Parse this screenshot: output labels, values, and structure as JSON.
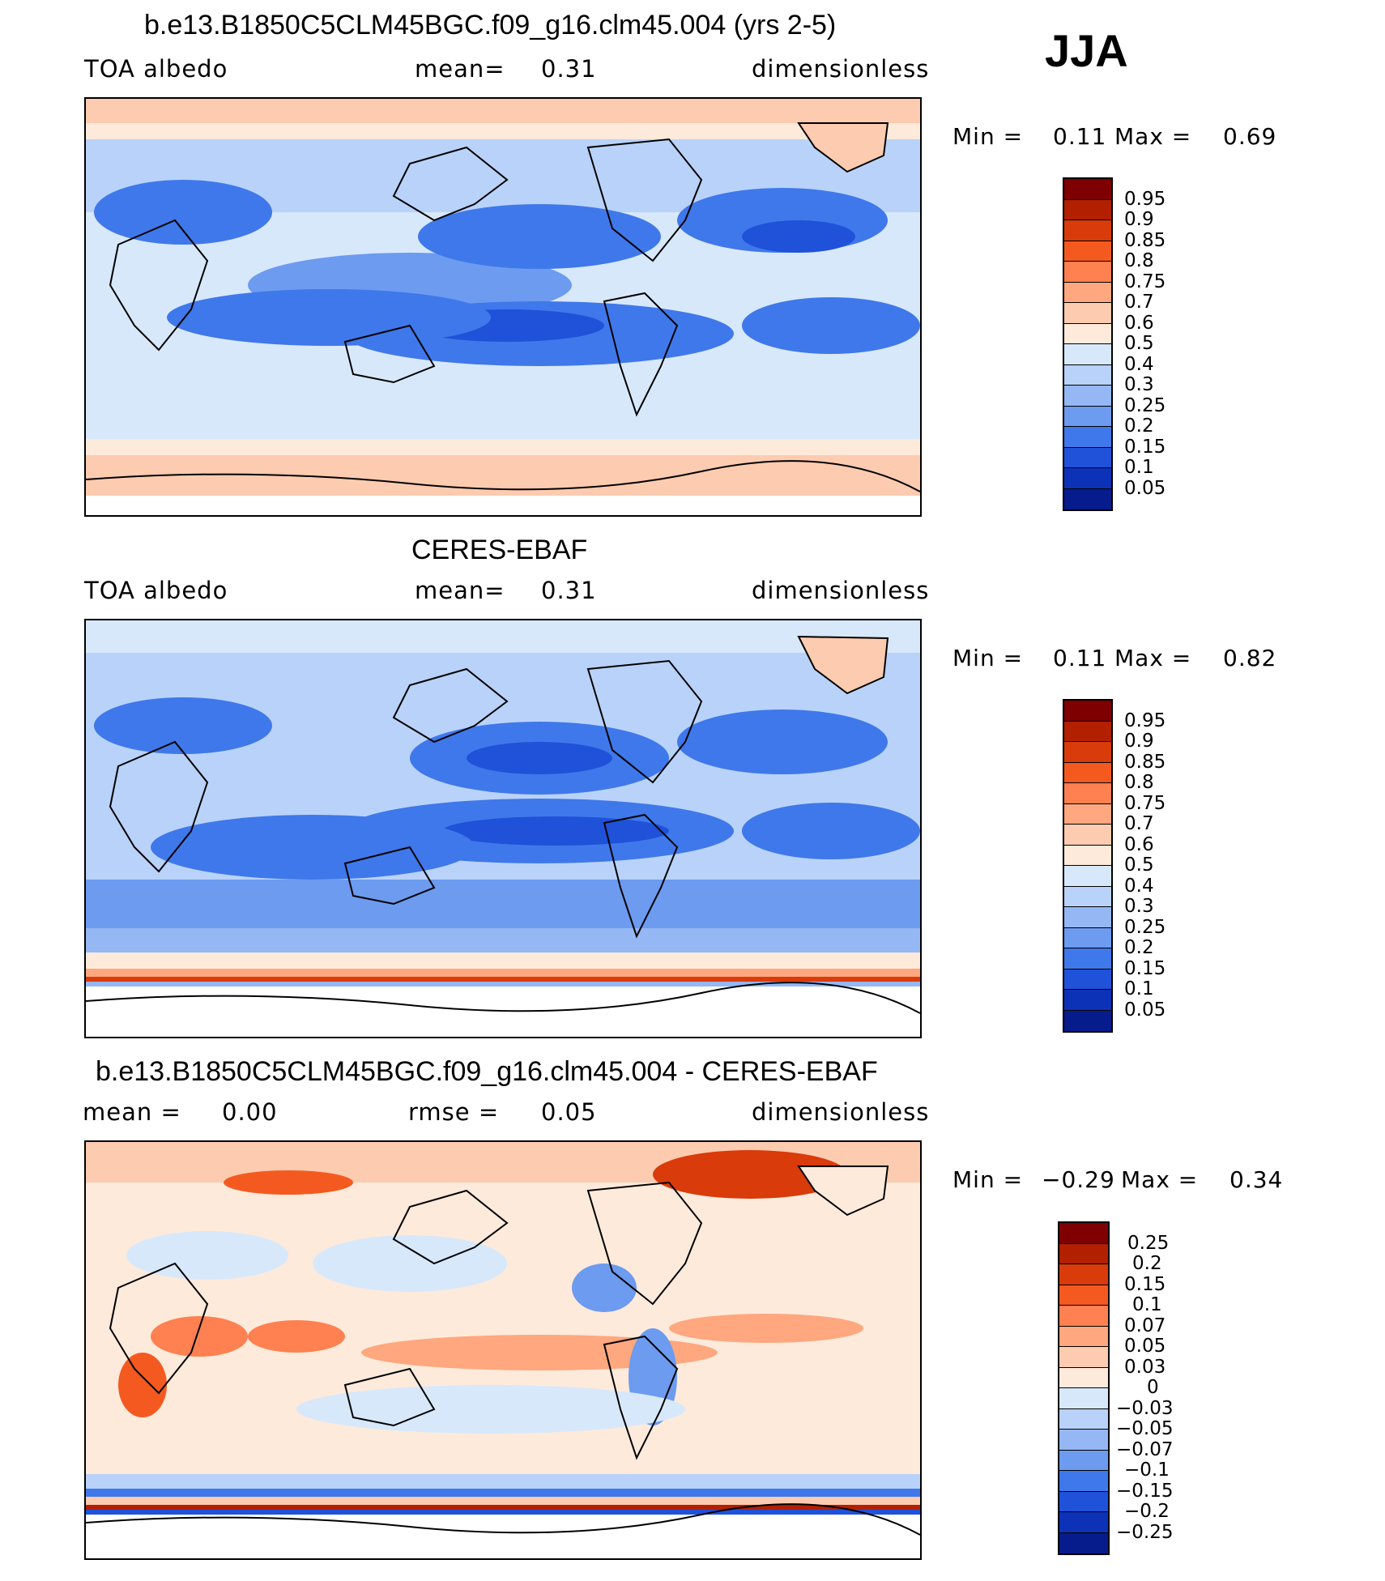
{
  "season": "JJA",
  "panels": [
    {
      "id": "model",
      "title": "b.e13.B1850C5CLM45BGC.f09_g16.clm45.004 (yrs 2-5)",
      "left_label": "TOA  albedo",
      "stat1_label": "mean=",
      "stat1_value": "0.31",
      "stat2_label": "",
      "stat2_value": "",
      "units": "dimensionless",
      "min_label": "Min  =",
      "min_value": "0.11",
      "max_label": "Max  =",
      "max_value": "0.69",
      "colorbar_labels": [
        "0.95",
        "0.9",
        "0.85",
        "0.8",
        "0.75",
        "0.7",
        "0.6",
        "0.5",
        "0.4",
        "0.3",
        "0.25",
        "0.2",
        "0.15",
        "0.1",
        "0.05"
      ]
    },
    {
      "id": "obs",
      "title": "CERES-EBAF",
      "left_label": "TOA  albedo",
      "stat1_label": "mean=",
      "stat1_value": "0.31",
      "stat2_label": "",
      "stat2_value": "",
      "units": "dimensionless",
      "min_label": "Min  =",
      "min_value": "0.11",
      "max_label": "Max  =",
      "max_value": "0.82",
      "colorbar_labels": [
        "0.95",
        "0.9",
        "0.85",
        "0.8",
        "0.75",
        "0.7",
        "0.6",
        "0.5",
        "0.4",
        "0.3",
        "0.25",
        "0.2",
        "0.15",
        "0.1",
        "0.05"
      ]
    },
    {
      "id": "diff",
      "title": "b.e13.B1850C5CLM45BGC.f09_g16.clm45.004 - CERES-EBAF",
      "left_label": "mean  =",
      "stat1_label": "0.00",
      "stat1_value": "",
      "stat2_label": "rmse  =",
      "stat2_value": "0.05",
      "units": "dimensionless",
      "min_label": "Min  =",
      "min_value": "−0.29",
      "max_label": "Max  =",
      "max_value": "0.34",
      "colorbar_labels": [
        "0.25",
        "0.2",
        "0.15",
        "0.1",
        "0.07",
        "0.05",
        "0.03",
        "0",
        "−0.03",
        "−0.05",
        "−0.07",
        "−0.1",
        "−0.15",
        "−0.2",
        "−0.25"
      ]
    }
  ],
  "colors": {
    "abs_scale": [
      "#7f0000",
      "#b22000",
      "#d93b0a",
      "#f45a1f",
      "#ff8050",
      "#ffa77e",
      "#fdcbb0",
      "#fdeadb",
      "#d8e8fb",
      "#b9d2f9",
      "#95b8f5",
      "#6c9bf0",
      "#3f78ea",
      "#1f52d9",
      "#0c32b8",
      "#061b8c"
    ],
    "diff_scale": [
      "#7f0000",
      "#b22000",
      "#d93b0a",
      "#f45a1f",
      "#ff8050",
      "#ffa77e",
      "#fdcbb0",
      "#fdeadb",
      "#d8e8fb",
      "#b9d2f9",
      "#95b8f5",
      "#6c9bf0",
      "#3f78ea",
      "#1f52d9",
      "#0c32b8",
      "#061b8c"
    ]
  }
}
